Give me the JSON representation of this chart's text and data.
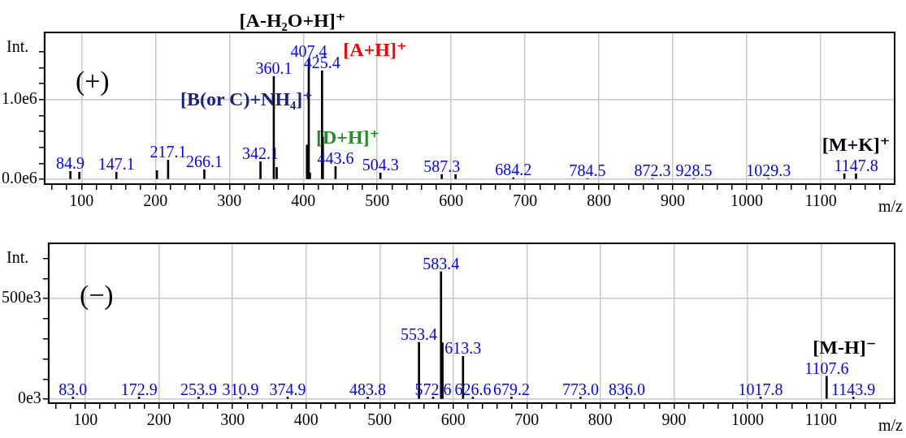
{
  "chart_data": [
    {
      "type": "bar",
      "xlabel": "m/z",
      "ylabel": "Int.",
      "xlim": [
        50,
        1200
      ],
      "ylim": [
        -60000,
        1840000
      ],
      "xticks": [
        {
          "value": 60,
          "label": null
        },
        {
          "value": 80,
          "label": null
        },
        100,
        {
          "value": 120,
          "label": null
        },
        {
          "value": 140,
          "label": null
        },
        {
          "value": 160,
          "label": null
        },
        {
          "value": 180,
          "label": null
        },
        200,
        {
          "value": 220,
          "label": null
        },
        {
          "value": 240,
          "label": null
        },
        {
          "value": 260,
          "label": null
        },
        {
          "value": 280,
          "label": null
        },
        300,
        {
          "value": 320,
          "label": null
        },
        {
          "value": 340,
          "label": null
        },
        {
          "value": 360,
          "label": null
        },
        {
          "value": 380,
          "label": null
        },
        400,
        {
          "value": 420,
          "label": null
        },
        {
          "value": 440,
          "label": null
        },
        {
          "value": 460,
          "label": null
        },
        {
          "value": 480,
          "label": null
        },
        500,
        {
          "value": 520,
          "label": null
        },
        {
          "value": 540,
          "label": null
        },
        {
          "value": 560,
          "label": null
        },
        {
          "value": 580,
          "label": null
        },
        600,
        {
          "value": 620,
          "label": null
        },
        {
          "value": 640,
          "label": null
        },
        {
          "value": 660,
          "label": null
        },
        {
          "value": 680,
          "label": null
        },
        700,
        {
          "value": 720,
          "label": null
        },
        {
          "value": 740,
          "label": null
        },
        {
          "value": 760,
          "label": null
        },
        {
          "value": 780,
          "label": null
        },
        800,
        {
          "value": 820,
          "label": null
        },
        {
          "value": 840,
          "label": null
        },
        {
          "value": 860,
          "label": null
        },
        {
          "value": 880,
          "label": null
        },
        900,
        {
          "value": 920,
          "label": null
        },
        {
          "value": 940,
          "label": null
        },
        {
          "value": 960,
          "label": null
        },
        {
          "value": 980,
          "label": null
        },
        1000,
        {
          "value": 1020,
          "label": null
        },
        {
          "value": 1040,
          "label": null
        },
        {
          "value": 1060,
          "label": null
        },
        {
          "value": 1080,
          "label": null
        },
        1100,
        {
          "value": 1120,
          "label": null
        },
        {
          "value": 1140,
          "label": null
        },
        {
          "value": 1160,
          "label": null
        },
        {
          "value": 1180,
          "label": null
        }
      ],
      "yticks": [
        {
          "value": 0,
          "label": "0.0e6"
        },
        {
          "value": 200000,
          "label": null
        },
        {
          "value": 400000,
          "label": null
        },
        {
          "value": 600000,
          "label": null
        },
        {
          "value": 800000,
          "label": null
        },
        {
          "value": 1000000,
          "label": "1.0e6"
        },
        {
          "value": 1200000,
          "label": null
        },
        {
          "value": 1400000,
          "label": null
        },
        {
          "value": 1600000,
          "label": null
        }
      ],
      "grid": true,
      "series": [
        {
          "color": "#000000",
          "x": [
            84.9,
            97,
            147.1,
            202,
            217.1,
            266.1,
            342.1,
            360.1,
            364,
            405,
            407.4,
            409,
            425.4,
            426.4,
            443.6,
            504.3,
            587.3,
            606,
            684.2,
            784.5,
            872.3,
            928.5,
            1029.3,
            1132,
            1147.8
          ],
          "values": [
            100000,
            90000,
            90000,
            110000,
            240000,
            120000,
            220000,
            1290000,
            150000,
            430000,
            1500000,
            80000,
            1360000,
            530000,
            160000,
            80000,
            60000,
            60000,
            20000,
            10000,
            10000,
            10000,
            10000,
            70000,
            70000
          ]
        }
      ],
      "annotations": [
        "(+)",
        {
          "text": "[A-H₂O+H]⁺",
          "x": 407.4,
          "y": 1500000
        },
        {
          "text": "[A+H]⁺",
          "x": 425.4,
          "y": 1360000
        },
        {
          "text": "[B(or C)+NH₄]⁺",
          "x": 360.1,
          "y": 1290000
        },
        {
          "text": "[D+H]⁺",
          "x": 443.6,
          "y": 160000
        },
        {
          "text": "[M+K]⁺",
          "x": 1147.8,
          "y": 70000
        },
        {
          "text": "84.9",
          "x": 84.9,
          "y": 100000
        },
        {
          "text": "147.1",
          "x": 147.1,
          "y": 90000
        },
        {
          "text": "217.1",
          "x": 217.1,
          "y": 240000
        },
        {
          "text": "266.1",
          "x": 266.1,
          "y": 120000
        },
        {
          "text": "342.1",
          "x": 342.1,
          "y": 220000
        },
        {
          "text": "360.1",
          "x": 360.1,
          "y": 1290000
        },
        {
          "text": "407.4",
          "x": 407.4,
          "y": 1500000
        },
        {
          "text": "425.4",
          "x": 425.4,
          "y": 1360000
        },
        {
          "text": "443.6",
          "x": 443.6,
          "y": 160000
        },
        {
          "text": "504.3",
          "x": 504.3,
          "y": 80000
        },
        {
          "text": "587.3",
          "x": 587.3,
          "y": 60000
        },
        {
          "text": "684.2",
          "x": 684.2,
          "y": 20000
        },
        {
          "text": "784.5",
          "x": 784.5,
          "y": 10000
        },
        {
          "text": "872.3",
          "x": 872.3,
          "y": 10000
        },
        {
          "text": "928.5",
          "x": 928.5,
          "y": 10000
        },
        {
          "text": "1029.3",
          "x": 1029.3,
          "y": 10000
        },
        {
          "text": "1147.8",
          "x": 1147.8,
          "y": 70000
        }
      ]
    },
    {
      "type": "bar",
      "xlabel": "m/z",
      "ylabel": "Int.",
      "xlim": [
        50,
        1200
      ],
      "ylim": [
        -20000,
        775000
      ],
      "xticks": [
        {
          "value": 60,
          "label": null
        },
        {
          "value": 80,
          "label": null
        },
        100,
        {
          "value": 120,
          "label": null
        },
        {
          "value": 140,
          "label": null
        },
        {
          "value": 160,
          "label": null
        },
        {
          "value": 180,
          "label": null
        },
        200,
        {
          "value": 220,
          "label": null
        },
        {
          "value": 240,
          "label": null
        },
        {
          "value": 260,
          "label": null
        },
        {
          "value": 280,
          "label": null
        },
        300,
        {
          "value": 320,
          "label": null
        },
        {
          "value": 340,
          "label": null
        },
        {
          "value": 360,
          "label": null
        },
        {
          "value": 380,
          "label": null
        },
        400,
        {
          "value": 420,
          "label": null
        },
        {
          "value": 440,
          "label": null
        },
        {
          "value": 460,
          "label": null
        },
        {
          "value": 480,
          "label": null
        },
        500,
        {
          "value": 520,
          "label": null
        },
        {
          "value": 540,
          "label": null
        },
        {
          "value": 560,
          "label": null
        },
        {
          "value": 580,
          "label": null
        },
        600,
        {
          "value": 620,
          "label": null
        },
        {
          "value": 640,
          "label": null
        },
        {
          "value": 660,
          "label": null
        },
        {
          "value": 680,
          "label": null
        },
        700,
        {
          "value": 720,
          "label": null
        },
        {
          "value": 740,
          "label": null
        },
        {
          "value": 760,
          "label": null
        },
        {
          "value": 780,
          "label": null
        },
        800,
        {
          "value": 820,
          "label": null
        },
        {
          "value": 840,
          "label": null
        },
        {
          "value": 860,
          "label": null
        },
        {
          "value": 880,
          "label": null
        },
        900,
        {
          "value": 920,
          "label": null
        },
        {
          "value": 940,
          "label": null
        },
        {
          "value": 960,
          "label": null
        },
        {
          "value": 980,
          "label": null
        },
        1000,
        {
          "value": 1020,
          "label": null
        },
        {
          "value": 1040,
          "label": null
        },
        {
          "value": 1060,
          "label": null
        },
        {
          "value": 1080,
          "label": null
        },
        1100,
        {
          "value": 1120,
          "label": null
        },
        {
          "value": 1140,
          "label": null
        },
        {
          "value": 1160,
          "label": null
        },
        {
          "value": 1180,
          "label": null
        }
      ],
      "yticks": [
        {
          "value": 0,
          "label": "0e3"
        },
        {
          "value": 100000,
          "label": null
        },
        {
          "value": 200000,
          "label": null
        },
        {
          "value": 300000,
          "label": null
        },
        {
          "value": 400000,
          "label": null
        },
        {
          "value": 500000,
          "label": "500e3"
        },
        {
          "value": 600000,
          "label": null
        },
        {
          "value": 700000,
          "label": null
        }
      ],
      "grid": true,
      "series": [
        {
          "color": "#000000",
          "x": [
            83.0,
            172.9,
            253.9,
            310.9,
            374.9,
            483.8,
            553.4,
            572.6,
            583.4,
            585.4,
            613.3,
            626.6,
            679.2,
            773.0,
            836.0,
            1017.8,
            1107.6,
            1143.9
          ],
          "values": [
            10000,
            10000,
            10000,
            10000,
            10000,
            10000,
            283000,
            10000,
            634000,
            280000,
            213000,
            10000,
            10000,
            10000,
            10000,
            10000,
            114000,
            10000
          ]
        }
      ],
      "annotations": [
        "(−)",
        {
          "text": "[M-H]⁻",
          "x": 1107.6,
          "y": 114000
        },
        {
          "text": "83.0",
          "x": 83.0,
          "y": 10000
        },
        {
          "text": "172.9",
          "x": 172.9,
          "y": 10000
        },
        {
          "text": "253.9",
          "x": 253.9,
          "y": 10000
        },
        {
          "text": "310.9",
          "x": 310.9,
          "y": 10000
        },
        {
          "text": "374.9",
          "x": 374.9,
          "y": 10000
        },
        {
          "text": "483.8",
          "x": 483.8,
          "y": 10000
        },
        {
          "text": "553.4",
          "x": 553.4,
          "y": 283000
        },
        {
          "text": "572.6",
          "x": 572.6,
          "y": 10000
        },
        {
          "text": "583.4",
          "x": 583.4,
          "y": 634000
        },
        {
          "text": "613.3",
          "x": 613.3,
          "y": 213000
        },
        {
          "text": "626.6",
          "x": 626.6,
          "y": 10000
        },
        {
          "text": "679.2",
          "x": 679.2,
          "y": 10000
        },
        {
          "text": "773.0",
          "x": 773.0,
          "y": 10000
        },
        {
          "text": "836.0",
          "x": 836.0,
          "y": 10000
        },
        {
          "text": "1017.8",
          "x": 1017.8,
          "y": 10000
        },
        {
          "text": "1107.6",
          "x": 1107.6,
          "y": 114000
        },
        {
          "text": "1143.9",
          "x": 1143.9,
          "y": 10000
        }
      ]
    }
  ]
}
